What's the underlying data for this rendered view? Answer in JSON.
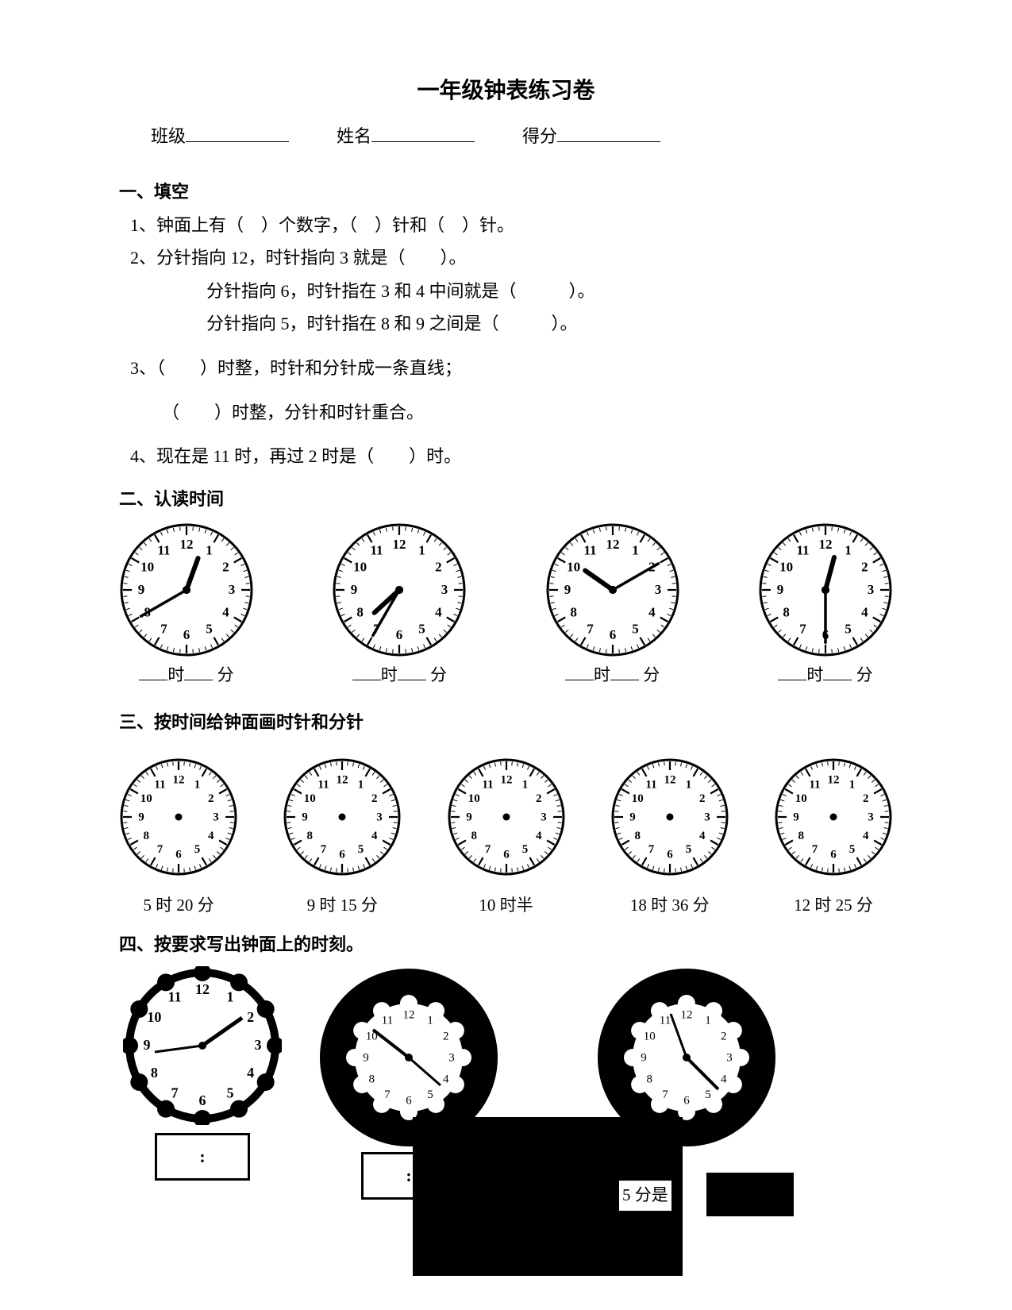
{
  "title": "一年级钟表练习卷",
  "header": {
    "class_label": "班级",
    "name_label": "姓名",
    "score_label": "得分"
  },
  "sections": {
    "s1": {
      "head": "一、填空",
      "q1": "1、钟面上有（　）个数字，（　）针和（　）针。",
      "q2a": "2、分针指向 12，时针指向 3 就是（　　）。",
      "q2b": "分针指向 6，时针指在 3 和 4 中间就是（　　　）。",
      "q2c": "分针指向 5，时针指在 8 和 9 之间是（　　　）。",
      "q3a": "3、（　　）时整，时针和分针成一条直线；",
      "q3b": "（　　）时整，分针和时针重合。",
      "q4": "4、现在是 11 时，再过 2 时是（　　）时。"
    },
    "s2": {
      "head": "二、认读时间",
      "clocks": [
        {
          "hour": 12,
          "minute": 40
        },
        {
          "hour": 7,
          "minute": 35
        },
        {
          "hour": 10,
          "minute": 10
        },
        {
          "hour": 12,
          "minute": 30
        }
      ],
      "label_hour": "时",
      "label_min": "分"
    },
    "s3": {
      "head": "三、按时间给钟面画时针和分针",
      "labels": [
        "5 时 20 分",
        "9 时 15 分",
        "10 时半",
        "18 时 36 分",
        "12 时 25 分"
      ]
    },
    "s4": {
      "head": "四、按要求写出钟面上的时刻。",
      "text_fragment": "5 分是",
      "colon": ":"
    }
  },
  "style": {
    "clock_size_s2": 170,
    "clock_size_s3": 150,
    "text_color": "#000000",
    "bg_color": "#ffffff"
  }
}
